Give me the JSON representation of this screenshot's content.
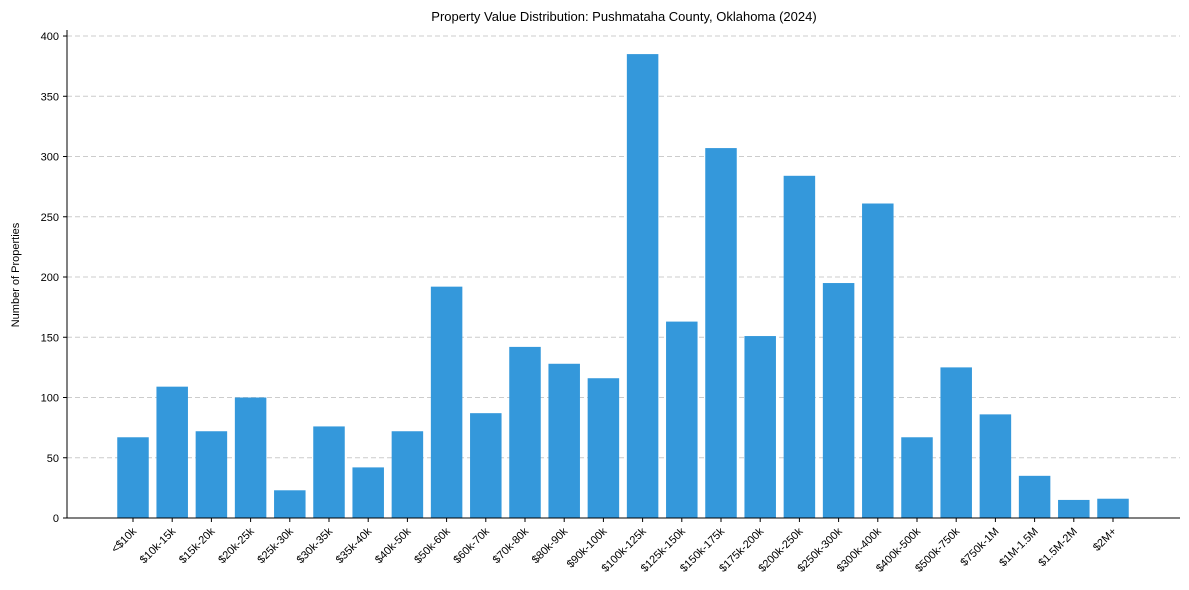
{
  "chart_data": {
    "type": "bar",
    "title": "Property Value Distribution: Pushmataha County, Oklahoma (2024)",
    "xlabel": "",
    "ylabel": "Number of Properties",
    "ylim": [
      0,
      405
    ],
    "yticks": [
      0,
      50,
      100,
      150,
      200,
      250,
      300,
      350,
      400
    ],
    "grid": "y-dashed",
    "color": "#3498db",
    "categories": [
      "<$10k",
      "$10k-15k",
      "$15k-20k",
      "$20k-25k",
      "$25k-30k",
      "$30k-35k",
      "$35k-40k",
      "$40k-50k",
      "$50k-60k",
      "$60k-70k",
      "$70k-80k",
      "$80k-90k",
      "$90k-100k",
      "$100k-125k",
      "$125k-150k",
      "$150k-175k",
      "$175k-200k",
      "$200k-250k",
      "$250k-300k",
      "$300k-400k",
      "$400k-500k",
      "$500k-750k",
      "$750k-1M",
      "$1M-1.5M",
      "$1.5M-2M",
      "$2M+"
    ],
    "values": [
      67,
      109,
      72,
      100,
      23,
      76,
      42,
      72,
      192,
      87,
      142,
      128,
      116,
      385,
      163,
      307,
      151,
      284,
      195,
      261,
      67,
      125,
      86,
      35,
      15,
      16
    ]
  }
}
